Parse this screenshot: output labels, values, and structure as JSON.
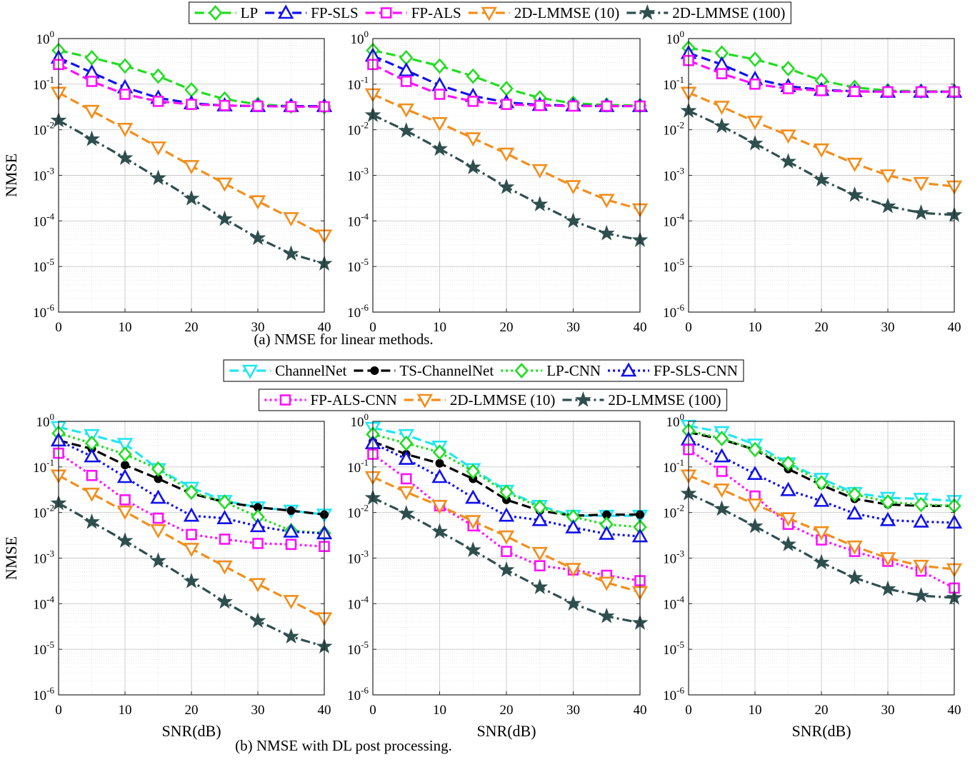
{
  "figure": {
    "caption_a": "(a)  NMSE for linear methods.",
    "caption_b": "(b)  NMSE with DL post processing."
  },
  "series_styles": {
    "LP": {
      "color": "#22dd22",
      "marker": "diamond",
      "dash": "dash"
    },
    "FP-SLS": {
      "color": "#1111ee",
      "marker": "triangle-up",
      "dash": "dash"
    },
    "FP-ALS": {
      "color": "#ff11ff",
      "marker": "square",
      "dash": "dash"
    },
    "2D-LMMSE (10)": {
      "color": "#f28e1c",
      "marker": "triangle-down",
      "dash": "dash"
    },
    "2D-LMMSE (100)": {
      "color": "#2f4f4f",
      "marker": "star",
      "dash": "dashdot"
    },
    "ChannelNet": {
      "color": "#22e6f2",
      "marker": "triangle-down",
      "dash": "dash"
    },
    "TS-ChannelNet": {
      "color": "#000000",
      "marker": "dot",
      "dash": "dash"
    },
    "LP-CNN": {
      "color": "#22dd22",
      "marker": "diamond",
      "dash": "dot"
    },
    "FP-SLS-CNN": {
      "color": "#1111ee",
      "marker": "triangle-up",
      "dash": "dot"
    },
    "FP-ALS-CNN": {
      "color": "#ff11ff",
      "marker": "square",
      "dash": "dot"
    }
  },
  "legends": {
    "top": {
      "rows": [
        [
          "LP",
          "FP-SLS",
          "FP-ALS",
          "2D-LMMSE (10)",
          "2D-LMMSE (100)"
        ]
      ]
    },
    "bottom": {
      "rows": [
        [
          "ChannelNet",
          "TS-ChannelNet",
          "LP-CNN",
          "FP-SLS-CNN"
        ],
        [
          "FP-ALS-CNN",
          "2D-LMMSE (10)",
          "2D-LMMSE (100)"
        ]
      ]
    }
  },
  "chart_data": [
    {
      "type": "line",
      "row": "a",
      "ylabel": "NMSE",
      "xlabel": "",
      "log_y": true,
      "grid": true,
      "xlim": [
        0,
        40
      ],
      "ylim": [
        1e-06,
        1
      ],
      "xticks": [
        "0",
        "10",
        "20",
        "30",
        "40"
      ],
      "yticks": [
        "10^-6",
        "10^-5",
        "10^-4",
        "10^-3",
        "10^-2",
        "10^-1",
        "10^0"
      ],
      "x": [
        0,
        5,
        10,
        15,
        20,
        25,
        30,
        35,
        40
      ],
      "series": [
        {
          "name": "LP",
          "values": [
            0.55,
            0.38,
            0.25,
            0.15,
            0.075,
            0.047,
            0.036,
            0.033,
            0.032
          ]
        },
        {
          "name": "FP-SLS",
          "values": [
            0.38,
            0.18,
            0.085,
            0.05,
            0.038,
            0.034,
            0.033,
            0.033,
            0.033
          ]
        },
        {
          "name": "FP-ALS",
          "values": [
            0.27,
            0.115,
            0.06,
            0.042,
            0.036,
            0.034,
            0.033,
            0.032,
            0.032
          ]
        },
        {
          "name": "2D-LMMSE (10)",
          "values": [
            0.065,
            0.026,
            0.0105,
            0.0041,
            0.0016,
            0.00066,
            0.00027,
            0.000115,
            4.8e-05
          ]
        },
        {
          "name": "2D-LMMSE (100)",
          "values": [
            0.016,
            0.0062,
            0.0024,
            0.00087,
            0.00031,
            0.00011,
            4.2e-05,
            1.9e-05,
            1.15e-05
          ]
        }
      ]
    },
    {
      "type": "line",
      "row": "a",
      "ylabel": "",
      "xlabel": "",
      "log_y": true,
      "grid": true,
      "xlim": [
        0,
        40
      ],
      "ylim": [
        1e-06,
        1
      ],
      "xticks": [
        "0",
        "10",
        "20",
        "30",
        "40"
      ],
      "yticks": [
        "10^-6",
        "10^-5",
        "10^-4",
        "10^-3",
        "10^-2",
        "10^-1",
        "10^0"
      ],
      "x": [
        0,
        5,
        10,
        15,
        20,
        25,
        30,
        35,
        40
      ],
      "series": [
        {
          "name": "LP",
          "values": [
            0.55,
            0.38,
            0.25,
            0.15,
            0.08,
            0.05,
            0.038,
            0.035,
            0.034
          ]
        },
        {
          "name": "FP-SLS",
          "values": [
            0.42,
            0.2,
            0.095,
            0.055,
            0.04,
            0.035,
            0.034,
            0.033,
            0.033
          ]
        },
        {
          "name": "FP-ALS",
          "values": [
            0.27,
            0.115,
            0.06,
            0.042,
            0.036,
            0.034,
            0.033,
            0.033,
            0.033
          ]
        },
        {
          "name": "2D-LMMSE (10)",
          "values": [
            0.06,
            0.028,
            0.014,
            0.0065,
            0.003,
            0.0013,
            0.00058,
            0.00029,
            0.00018
          ]
        },
        {
          "name": "2D-LMMSE (100)",
          "values": [
            0.021,
            0.0095,
            0.0038,
            0.0015,
            0.00055,
            0.00023,
            0.0001,
            5.3e-05,
            3.8e-05
          ]
        }
      ]
    },
    {
      "type": "line",
      "row": "a",
      "ylabel": "",
      "xlabel": "",
      "log_y": true,
      "grid": true,
      "xlim": [
        0,
        40
      ],
      "ylim": [
        1e-06,
        1
      ],
      "xticks": [
        "0",
        "10",
        "20",
        "30",
        "40"
      ],
      "yticks": [
        "10^-6",
        "10^-5",
        "10^-4",
        "10^-3",
        "10^-2",
        "10^-1",
        "10^0"
      ],
      "x": [
        0,
        5,
        10,
        15,
        20,
        25,
        30,
        35,
        40
      ],
      "series": [
        {
          "name": "LP",
          "values": [
            0.62,
            0.48,
            0.35,
            0.22,
            0.12,
            0.085,
            0.072,
            0.07,
            0.069
          ]
        },
        {
          "name": "FP-SLS",
          "values": [
            0.48,
            0.27,
            0.13,
            0.09,
            0.075,
            0.07,
            0.068,
            0.068,
            0.068
          ]
        },
        {
          "name": "FP-ALS",
          "values": [
            0.33,
            0.17,
            0.1,
            0.08,
            0.072,
            0.069,
            0.068,
            0.068,
            0.068
          ]
        },
        {
          "name": "2D-LMMSE (10)",
          "values": [
            0.065,
            0.032,
            0.015,
            0.0075,
            0.0037,
            0.0018,
            0.001,
            0.00068,
            0.00057
          ]
        },
        {
          "name": "2D-LMMSE (100)",
          "values": [
            0.026,
            0.012,
            0.005,
            0.002,
            0.0008,
            0.00037,
            0.00021,
            0.00015,
            0.000135
          ]
        }
      ]
    },
    {
      "type": "line",
      "row": "b",
      "ylabel": "NMSE",
      "xlabel": "SNR(dB)",
      "log_y": true,
      "grid": true,
      "xlim": [
        0,
        40
      ],
      "ylim": [
        1e-06,
        1
      ],
      "xticks": [
        "0",
        "10",
        "20",
        "30",
        "40"
      ],
      "yticks": [
        "10^-6",
        "10^-5",
        "10^-4",
        "10^-3",
        "10^-2",
        "10^-1",
        "10^0"
      ],
      "x": [
        0,
        5,
        10,
        15,
        20,
        25,
        30,
        35,
        40
      ],
      "series": [
        {
          "name": "ChannelNet",
          "values": [
            0.75,
            0.5,
            0.32,
            0.09,
            0.035,
            0.018,
            0.013,
            0.011,
            0.009
          ]
        },
        {
          "name": "TS-ChannelNet",
          "values": [
            0.38,
            0.25,
            0.11,
            0.055,
            0.026,
            0.017,
            0.013,
            0.011,
            0.009
          ]
        },
        {
          "name": "LP-CNN",
          "values": [
            0.55,
            0.33,
            0.19,
            0.09,
            0.028,
            0.017,
            0.008,
            0.004,
            0.0035
          ]
        },
        {
          "name": "FP-SLS-CNN",
          "values": [
            0.38,
            0.17,
            0.06,
            0.021,
            0.0085,
            0.0075,
            0.005,
            0.0038,
            0.0035
          ]
        },
        {
          "name": "FP-ALS-CNN",
          "values": [
            0.2,
            0.065,
            0.019,
            0.0075,
            0.0033,
            0.0026,
            0.0021,
            0.002,
            0.0018
          ]
        },
        {
          "name": "2D-LMMSE (10)",
          "values": [
            0.065,
            0.026,
            0.0105,
            0.0041,
            0.0016,
            0.00066,
            0.00027,
            0.000115,
            4.8e-05
          ]
        },
        {
          "name": "2D-LMMSE (100)",
          "values": [
            0.016,
            0.0062,
            0.0024,
            0.00087,
            0.00031,
            0.00011,
            4.2e-05,
            1.9e-05,
            1.15e-05
          ]
        }
      ]
    },
    {
      "type": "line",
      "row": "b",
      "ylabel": "",
      "xlabel": "SNR(dB)",
      "log_y": true,
      "grid": true,
      "xlim": [
        0,
        40
      ],
      "ylim": [
        1e-06,
        1
      ],
      "xticks": [
        "0",
        "10",
        "20",
        "30",
        "40"
      ],
      "yticks": [
        "10^-6",
        "10^-5",
        "10^-4",
        "10^-3",
        "10^-2",
        "10^-1",
        "10^0"
      ],
      "x": [
        0,
        5,
        10,
        15,
        20,
        25,
        30,
        35,
        40
      ],
      "series": [
        {
          "name": "ChannelNet",
          "values": [
            0.72,
            0.5,
            0.28,
            0.09,
            0.03,
            0.014,
            0.0085,
            0.0085,
            0.0085
          ]
        },
        {
          "name": "TS-ChannelNet",
          "values": [
            0.36,
            0.19,
            0.12,
            0.055,
            0.019,
            0.011,
            0.0085,
            0.009,
            0.009
          ]
        },
        {
          "name": "LP-CNN",
          "values": [
            0.52,
            0.33,
            0.21,
            0.08,
            0.028,
            0.013,
            0.008,
            0.0055,
            0.0048
          ]
        },
        {
          "name": "FP-SLS-CNN",
          "values": [
            0.33,
            0.15,
            0.06,
            0.021,
            0.0085,
            0.0068,
            0.0047,
            0.0034,
            0.003
          ]
        },
        {
          "name": "FP-ALS-CNN",
          "values": [
            0.19,
            0.055,
            0.014,
            0.0051,
            0.0014,
            0.00068,
            0.00055,
            0.00042,
            0.00032
          ]
        },
        {
          "name": "2D-LMMSE (10)",
          "values": [
            0.06,
            0.028,
            0.014,
            0.0065,
            0.003,
            0.0013,
            0.00058,
            0.00029,
            0.00018
          ]
        },
        {
          "name": "2D-LMMSE (100)",
          "values": [
            0.021,
            0.0095,
            0.0038,
            0.0015,
            0.00055,
            0.00023,
            0.0001,
            5.3e-05,
            3.8e-05
          ]
        }
      ]
    },
    {
      "type": "line",
      "row": "b",
      "ylabel": "",
      "xlabel": "SNR(dB)",
      "log_y": true,
      "grid": true,
      "xlim": [
        0,
        40
      ],
      "ylim": [
        1e-06,
        1
      ],
      "xticks": [
        "0",
        "10",
        "20",
        "30",
        "40"
      ],
      "yticks": [
        "10^-6",
        "10^-5",
        "10^-4",
        "10^-3",
        "10^-2",
        "10^-1",
        "10^0"
      ],
      "x": [
        0,
        5,
        10,
        15,
        20,
        25,
        30,
        35,
        40
      ],
      "series": [
        {
          "name": "ChannelNet",
          "values": [
            0.8,
            0.58,
            0.31,
            0.12,
            0.055,
            0.027,
            0.021,
            0.02,
            0.018
          ]
        },
        {
          "name": "TS-ChannelNet",
          "values": [
            0.58,
            0.4,
            0.24,
            0.09,
            0.04,
            0.02,
            0.015,
            0.014,
            0.014
          ]
        },
        {
          "name": "LP-CNN",
          "values": [
            0.62,
            0.42,
            0.24,
            0.12,
            0.045,
            0.025,
            0.017,
            0.015,
            0.014
          ]
        },
        {
          "name": "FP-SLS-CNN",
          "values": [
            0.4,
            0.17,
            0.07,
            0.031,
            0.018,
            0.0095,
            0.0068,
            0.0063,
            0.006
          ]
        },
        {
          "name": "FP-ALS-CNN",
          "values": [
            0.24,
            0.08,
            0.023,
            0.0055,
            0.0025,
            0.0014,
            0.00085,
            0.00052,
            0.00022
          ]
        },
        {
          "name": "2D-LMMSE (10)",
          "values": [
            0.065,
            0.032,
            0.015,
            0.0075,
            0.0037,
            0.0018,
            0.001,
            0.00068,
            0.00057
          ]
        },
        {
          "name": "2D-LMMSE (100)",
          "values": [
            0.026,
            0.012,
            0.005,
            0.002,
            0.0008,
            0.00037,
            0.00021,
            0.00015,
            0.000135
          ]
        }
      ]
    }
  ]
}
